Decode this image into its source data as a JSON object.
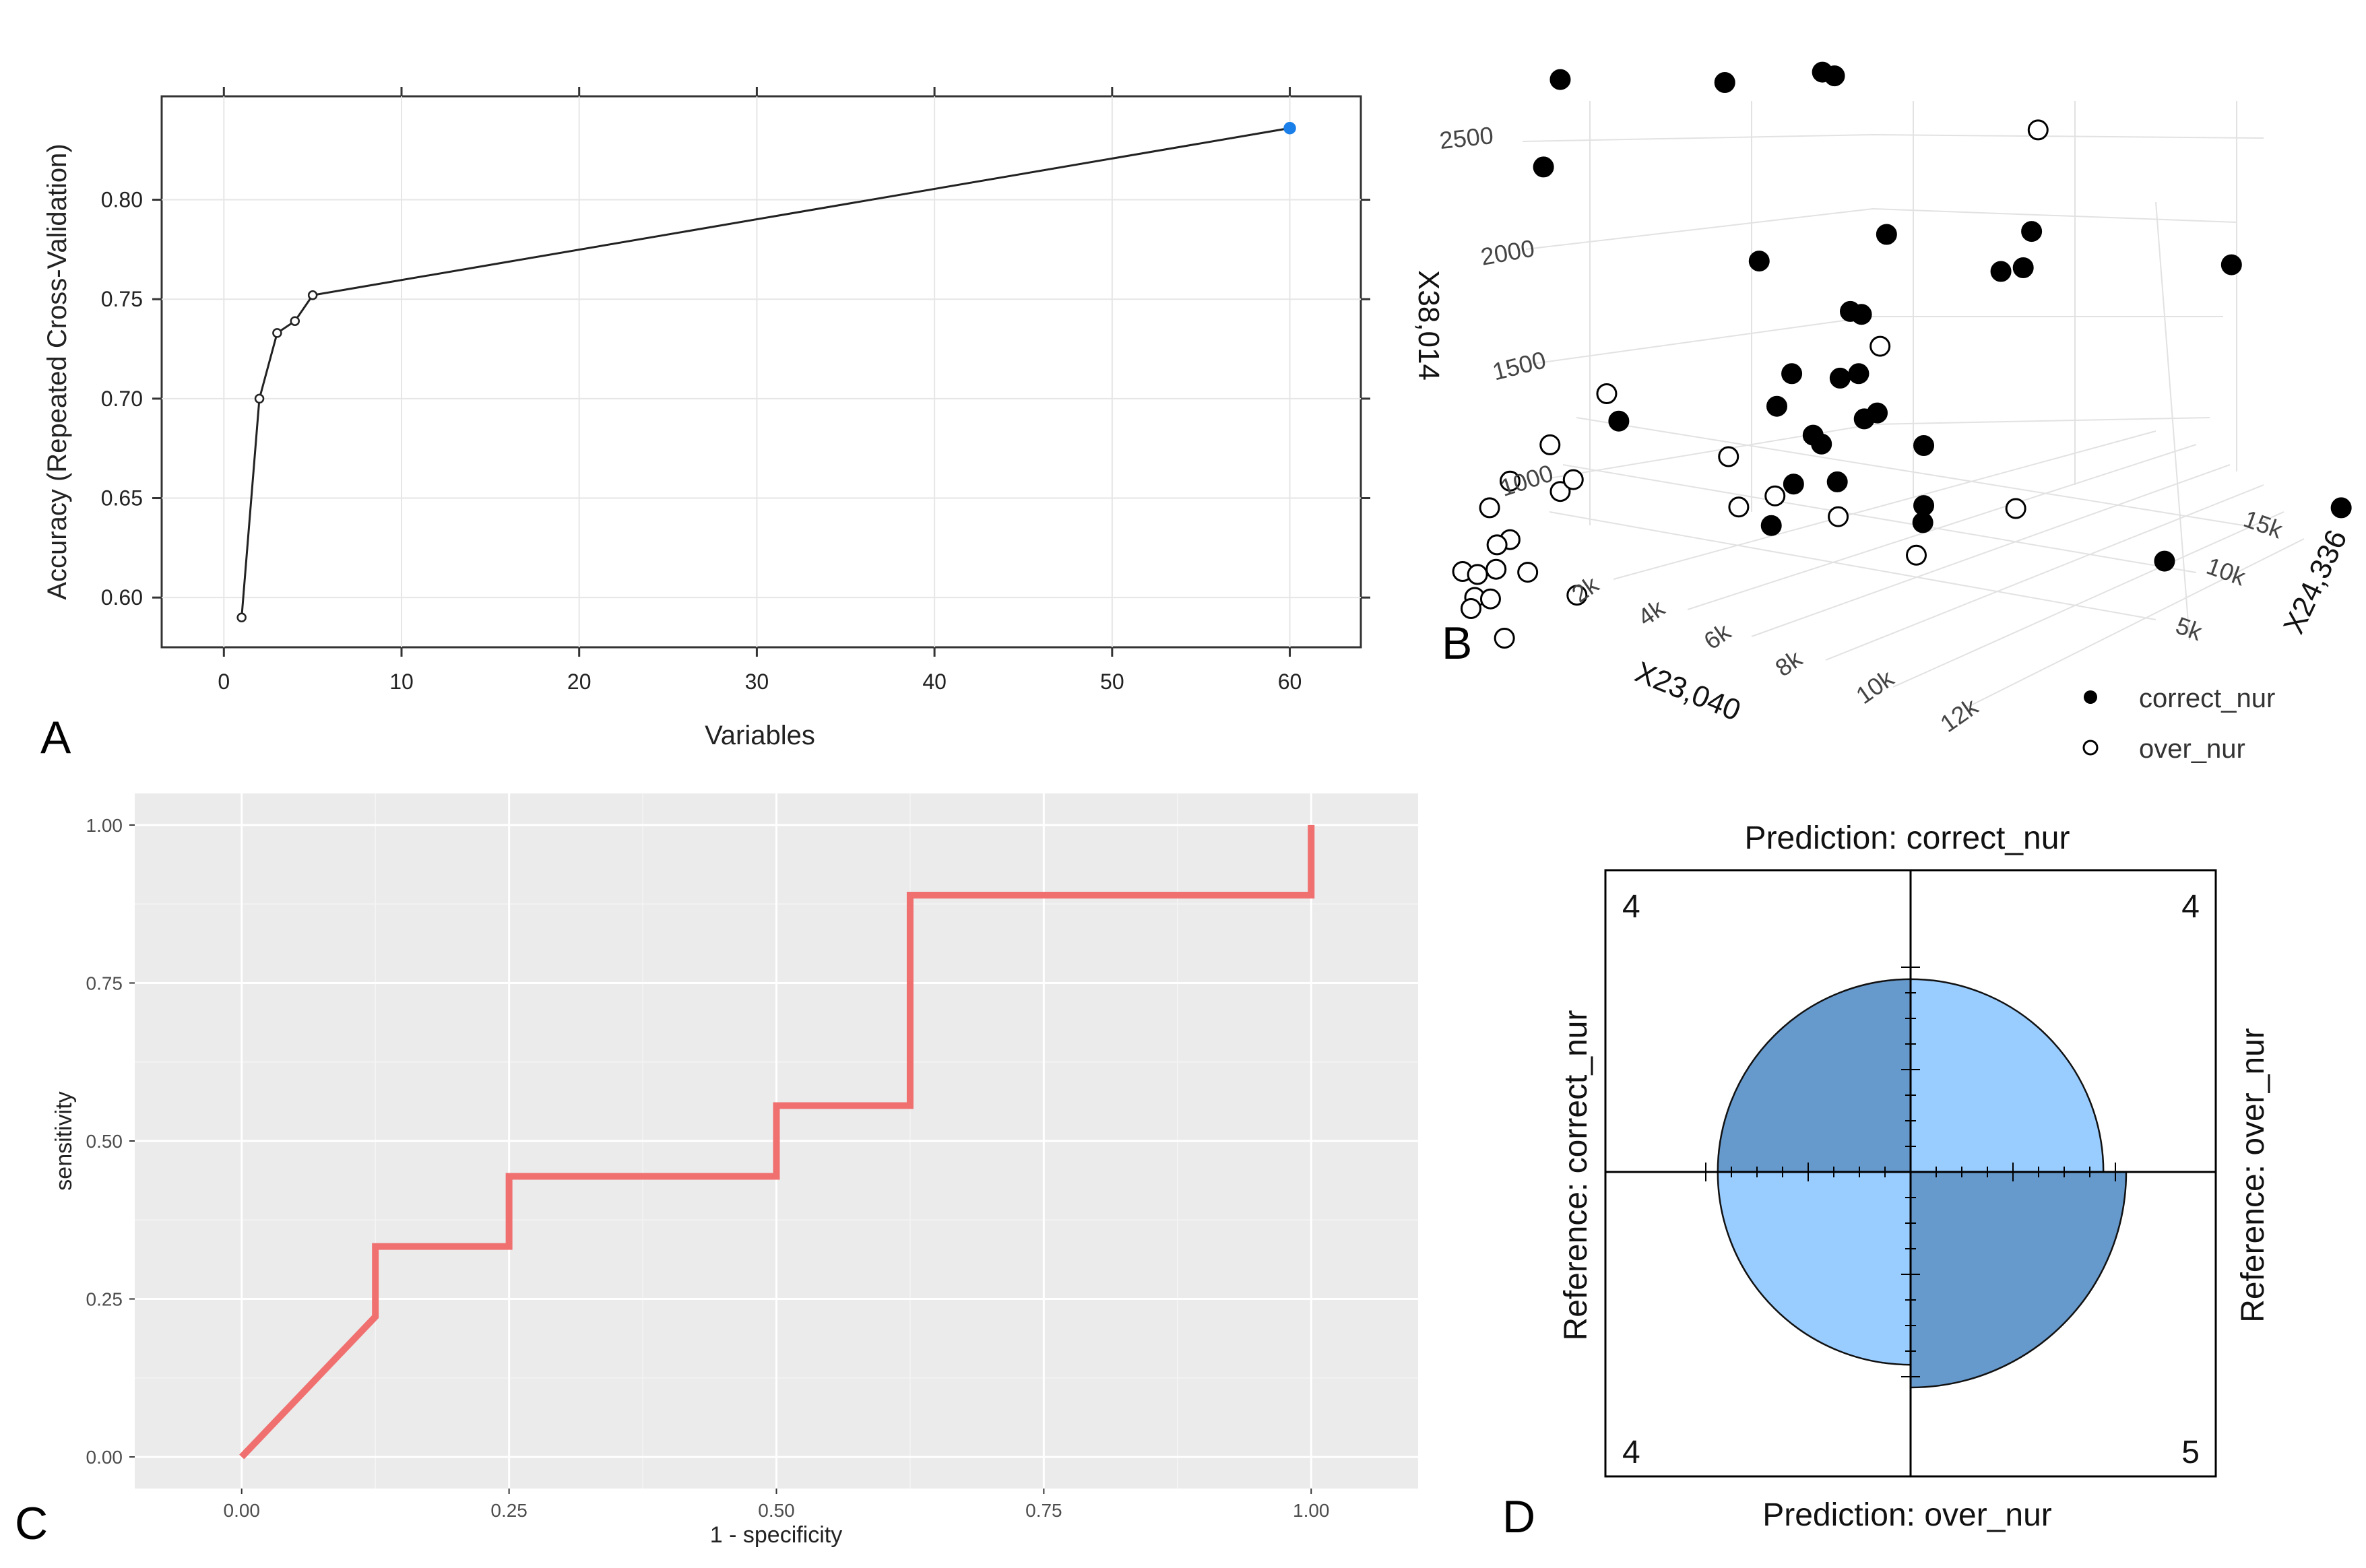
{
  "panels": {
    "a": "A",
    "b": "B",
    "c": "C",
    "d": "D"
  },
  "colors": {
    "accent_point": "#1a7fe8",
    "roc_line": "#f07070",
    "panel_c_bg": "#ebebeb",
    "fourfold_dark": "#6699cc",
    "fourfold_light": "#99ccff"
  },
  "chart_data": [
    {
      "id": "A",
      "type": "line",
      "title": "",
      "xlabel": "Variables",
      "ylabel": "Accuracy (Repeated Cross-Validation)",
      "xlim": [
        -3.5,
        64
      ],
      "ylim": [
        0.575,
        0.852
      ],
      "xticks": [
        0,
        10,
        20,
        30,
        40,
        50,
        60
      ],
      "yticks": [
        0.6,
        0.65,
        0.7,
        0.75,
        0.8
      ],
      "ytick_labels": [
        "0.60",
        "0.65",
        "0.70",
        "0.75",
        "0.80"
      ],
      "x": [
        1,
        2,
        3,
        4,
        5,
        60
      ],
      "y": [
        0.59,
        0.7,
        0.733,
        0.739,
        0.752,
        0.836
      ],
      "highlight_x": 60,
      "highlight_y": 0.836
    },
    {
      "id": "B",
      "type": "scatter",
      "title": "",
      "xlabel": "X23,040",
      "ylabel": "X24,336",
      "zlabel": "X38,014",
      "xticks": [
        "2k",
        "4k",
        "6k",
        "8k",
        "10k",
        "12k"
      ],
      "yticks": [
        "5k",
        "10k",
        "15k"
      ],
      "zticks": [
        "1000",
        "1500",
        "2000",
        "2500"
      ],
      "legend": [
        "correct_nur",
        "over_nur"
      ],
      "series": [
        {
          "name": "correct_nur",
          "screen_points": [
            [
              0.142,
              0.071
            ],
            [
              0.319,
              0.075
            ],
            [
              0.424,
              0.061
            ],
            [
              0.437,
              0.066
            ],
            [
              0.124,
              0.189
            ],
            [
              0.356,
              0.316
            ],
            [
              0.493,
              0.28
            ],
            [
              0.649,
              0.276
            ],
            [
              0.616,
              0.33
            ],
            [
              0.64,
              0.325
            ],
            [
              0.864,
              0.321
            ],
            [
              0.454,
              0.384
            ],
            [
              0.466,
              0.388
            ],
            [
              0.391,
              0.468
            ],
            [
              0.443,
              0.474
            ],
            [
              0.463,
              0.468
            ],
            [
              0.205,
              0.532
            ],
            [
              0.375,
              0.512
            ],
            [
              0.469,
              0.529
            ],
            [
              0.483,
              0.521
            ],
            [
              0.423,
              0.563
            ],
            [
              0.414,
              0.551
            ],
            [
              0.393,
              0.617
            ],
            [
              0.44,
              0.614
            ],
            [
              0.533,
              0.565
            ],
            [
              0.369,
              0.673
            ],
            [
              0.533,
              0.646
            ],
            [
              0.532,
              0.669
            ],
            [
              0.982,
              0.649
            ],
            [
              0.792,
              0.721
            ]
          ]
        },
        {
          "name": "over_nur",
          "screen_points": [
            [
              0.656,
              0.139
            ],
            [
              0.486,
              0.431
            ],
            [
              0.192,
              0.495
            ],
            [
              0.131,
              0.564
            ],
            [
              0.088,
              0.613
            ],
            [
              0.142,
              0.627
            ],
            [
              0.156,
              0.611
            ],
            [
              0.066,
              0.649
            ],
            [
              0.088,
              0.692
            ],
            [
              0.074,
              0.699
            ],
            [
              0.037,
              0.735
            ],
            [
              0.053,
              0.739
            ],
            [
              0.073,
              0.732
            ],
            [
              0.107,
              0.736
            ],
            [
              0.16,
              0.767
            ],
            [
              0.05,
              0.77
            ],
            [
              0.046,
              0.785
            ],
            [
              0.067,
              0.772
            ],
            [
              0.082,
              0.825
            ],
            [
              0.323,
              0.58
            ],
            [
              0.334,
              0.648
            ],
            [
              0.373,
              0.633
            ],
            [
              0.441,
              0.661
            ],
            [
              0.632,
              0.65
            ],
            [
              0.525,
              0.713
            ]
          ]
        }
      ]
    },
    {
      "id": "C",
      "type": "line",
      "title": "",
      "xlabel": "1 - specificity",
      "ylabel": "sensitivity",
      "xlim": [
        -0.1,
        1.1
      ],
      "ylim": [
        -0.05,
        1.05
      ],
      "xticks": [
        0,
        0.25,
        0.5,
        0.75,
        1
      ],
      "yticks": [
        0,
        0.25,
        0.5,
        0.75,
        1
      ],
      "xtick_labels": [
        "0.00",
        "0.25",
        "0.50",
        "0.75",
        "1.00"
      ],
      "ytick_labels": [
        "0.00",
        "0.25",
        "0.50",
        "0.75",
        "1.00"
      ],
      "x": [
        0,
        0.125,
        0.125,
        0.25,
        0.25,
        0.5,
        0.5,
        0.625,
        0.625,
        1,
        1
      ],
      "y": [
        0,
        0.222,
        0.333,
        0.333,
        0.444,
        0.444,
        0.556,
        0.556,
        0.889,
        0.889,
        1
      ]
    },
    {
      "id": "D",
      "type": "pie",
      "subtype": "fourfold",
      "labels": {
        "top": "Prediction: correct_nur",
        "bottom": "Prediction: over_nur",
        "left": "Reference: correct_nur",
        "right": "Reference: over_nur"
      },
      "cells": {
        "top_left": 4,
        "top_right": 4,
        "bottom_left": 4,
        "bottom_right": 5
      }
    }
  ]
}
